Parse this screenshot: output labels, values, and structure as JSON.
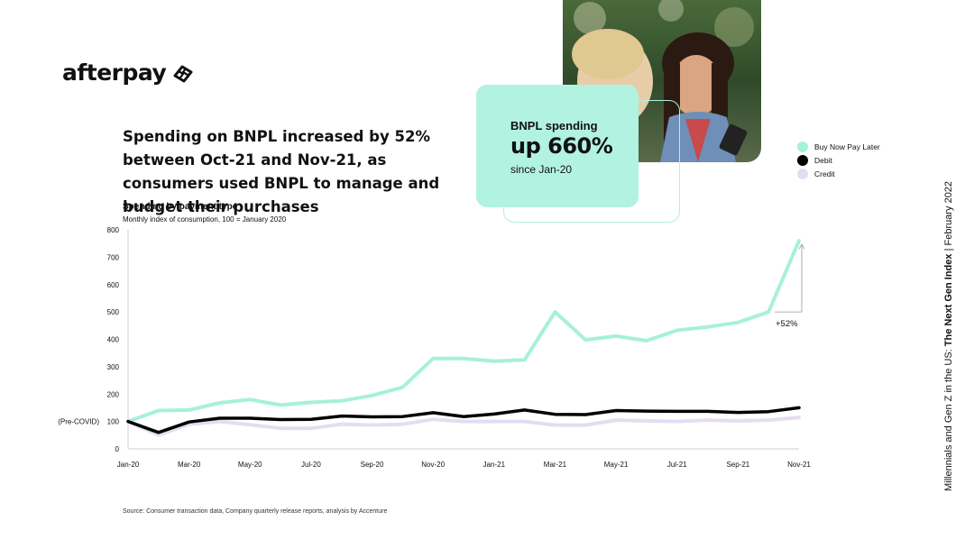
{
  "brand": {
    "name": "afterpay"
  },
  "headline": "Spending on BNPL increased by 52% between Oct-21 and Nov-21, as consumers used BNPL to manage and budget their purchases",
  "callout": {
    "label": "BNPL spending",
    "value": "up 660%",
    "sub": "since Jan-20"
  },
  "side_note": {
    "prefix": "Millennials and Gen Z in the US:",
    "title": "The Next Gen Index",
    "separator": "|",
    "date": "February 2022"
  },
  "source": "Source: Consumer transaction data, Company quarterly release reports, analysis by Accenture",
  "colors": {
    "bnpl": "#a6f0dc",
    "debit": "#000000",
    "credit": "#e6dcf2",
    "accent": "#b2f2e0"
  },
  "chart_data": {
    "type": "line",
    "title": "Spending by payment type",
    "subtitle": "Monthly index of consumption, 100 = January 2020",
    "x": [
      "Jan-20",
      "Feb-20",
      "Mar-20",
      "Apr-20",
      "May-20",
      "Jun-20",
      "Jul-20",
      "Aug-20",
      "Sep-20",
      "Oct-20",
      "Nov-20",
      "Dec-20",
      "Jan-21",
      "Feb-21",
      "Mar-21",
      "Apr-21",
      "May-21",
      "Jun-21",
      "Jul-21",
      "Aug-21",
      "Sep-21",
      "Oct-21",
      "Nov-21"
    ],
    "x_tick_labels": [
      "Jan-20",
      "Mar-20",
      "May-20",
      "Jul-20",
      "Sep-20",
      "Nov-20",
      "Jan-21",
      "Mar-21",
      "May-21",
      "Jul-21",
      "Sep-21",
      "Nov-21"
    ],
    "ylim": [
      0,
      800
    ],
    "y_ticks": [
      0,
      100,
      200,
      300,
      400,
      500,
      600,
      700,
      800
    ],
    "y_tick_labels": [
      "0",
      "100",
      "200",
      "300",
      "400",
      "500",
      "600",
      "700",
      "800"
    ],
    "baseline_label": "(Pre-COVID)",
    "series": [
      {
        "name": "Buy Now Pay Later",
        "values": [
          100,
          140,
          142,
          168,
          180,
          160,
          170,
          175,
          195,
          225,
          330,
          330,
          320,
          325,
          500,
          398,
          412,
          395,
          433,
          445,
          462,
          500,
          760
        ]
      },
      {
        "name": "Debit",
        "values": [
          100,
          60,
          98,
          112,
          112,
          107,
          108,
          120,
          117,
          118,
          132,
          118,
          127,
          142,
          126,
          125,
          140,
          138,
          137,
          137,
          133,
          136,
          150
        ]
      },
      {
        "name": "Credit",
        "values": [
          100,
          50,
          90,
          100,
          88,
          75,
          75,
          90,
          87,
          90,
          108,
          100,
          100,
          100,
          87,
          87,
          105,
          102,
          100,
          105,
          102,
          105,
          115
        ]
      }
    ],
    "annotation": {
      "text": "+52%",
      "from_index": 21,
      "to_index": 22
    },
    "legend": "top-right",
    "grid": false
  }
}
